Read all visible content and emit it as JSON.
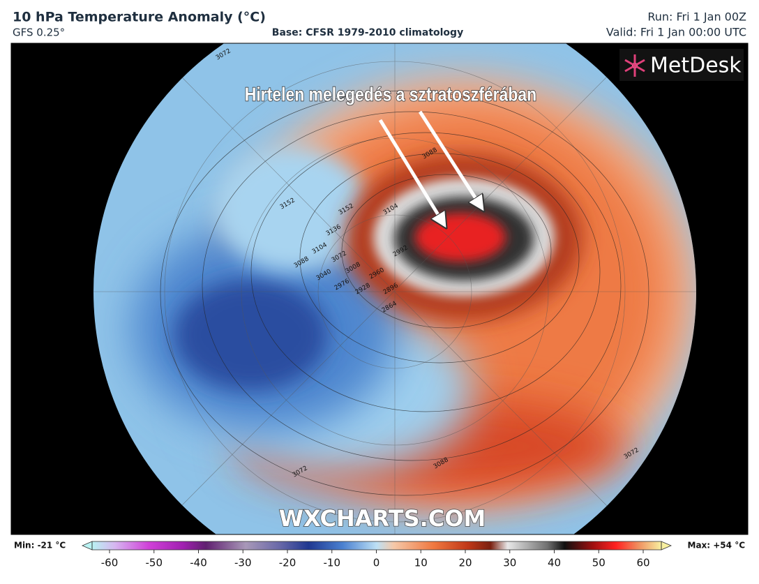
{
  "header": {
    "title": "10 hPa Temperature Anomaly (°C)",
    "model": "GFS 0.25°",
    "base": "Base: CFSR 1979-2010 climatology",
    "run": "Run: Fri 1 Jan 00Z",
    "valid": "Valid: Fri 1 Jan 00:00 UTC"
  },
  "map": {
    "annotation": "Hirtelen melegedés a sztratoszférában",
    "brand": "MetDesk",
    "watermark": "WXCHARTS.COM",
    "contour_labels": [
      3072,
      3152,
      3136,
      3152,
      3104,
      3088,
      3072,
      3040,
      3008,
      2976,
      2960,
      2928,
      2896,
      2864,
      3104,
      3088,
      2992,
      3088,
      3072,
      3072
    ]
  },
  "colorbar": {
    "min_label": "Min: -21 °C",
    "max_label": "Max: +54 °C",
    "ticks": [
      -60,
      -50,
      -40,
      -30,
      -20,
      -10,
      0,
      10,
      20,
      30,
      40,
      50,
      60
    ]
  }
}
